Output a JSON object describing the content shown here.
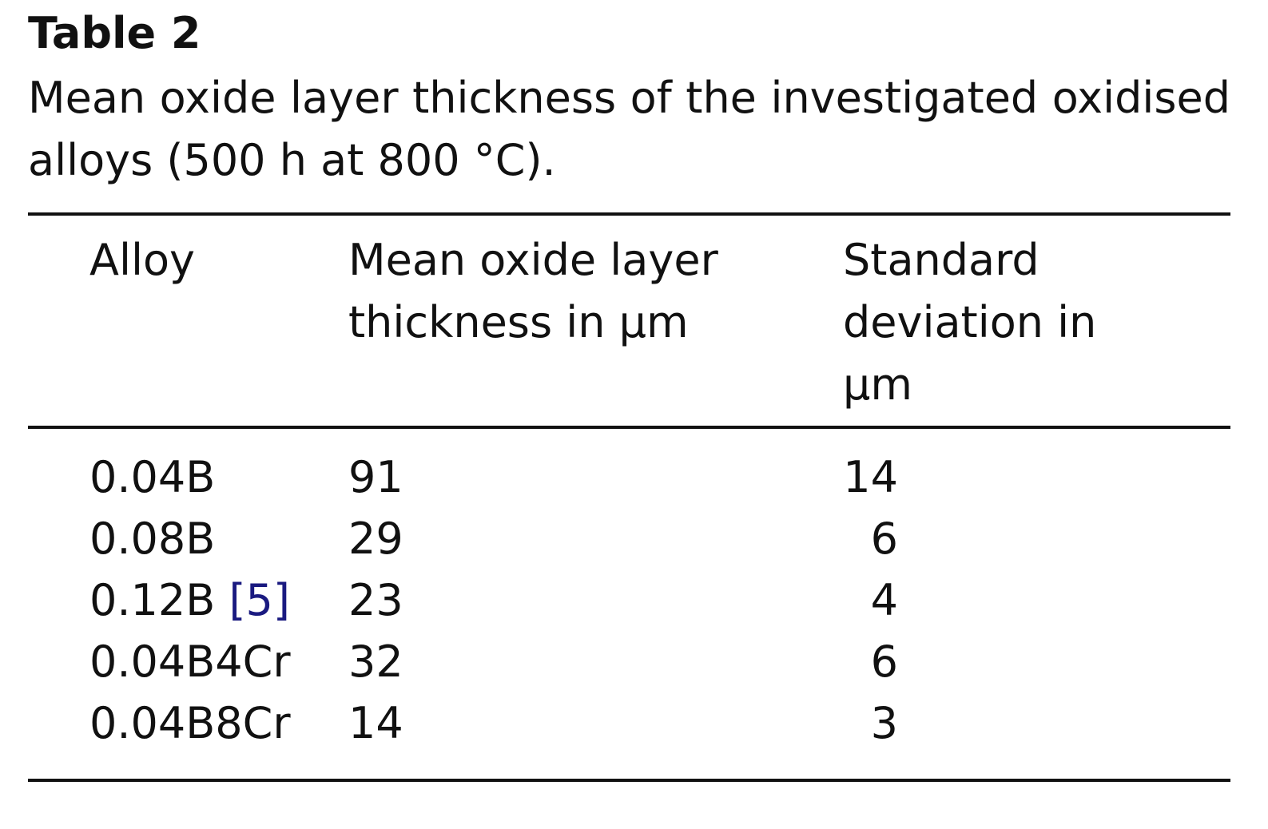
{
  "table": {
    "label": "Table 2",
    "caption": "Mean oxide layer thickness of the investigated oxidised alloys (500 h at 800 °C).",
    "headers": {
      "alloy": "Alloy",
      "mean_line1": "Mean oxide layer",
      "mean_line2": "thickness in μm",
      "sd_line1": "Standard",
      "sd_line2": "deviation in",
      "sd_line3": "μm"
    },
    "rows": [
      {
        "alloy": "0.04B",
        "ref": "",
        "mean": "91",
        "sd": "14"
      },
      {
        "alloy": "0.08B",
        "ref": "",
        "mean": "29",
        "sd": "6"
      },
      {
        "alloy": "0.12B",
        "ref": "[5]",
        "mean": "23",
        "sd": "4"
      },
      {
        "alloy": "0.04B4Cr",
        "ref": "",
        "mean": "32",
        "sd": "6"
      },
      {
        "alloy": "0.04B8Cr",
        "ref": "",
        "mean": "14",
        "sd": "3"
      }
    ]
  }
}
